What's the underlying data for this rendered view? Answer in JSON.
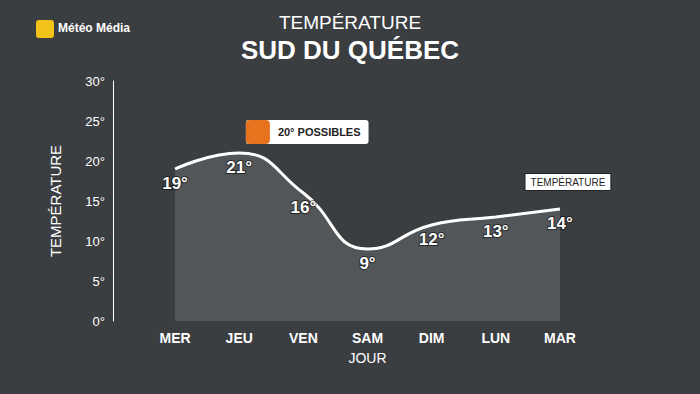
{
  "chart_data": {
    "type": "line",
    "logo": "Météo Média",
    "subtitle": "TEMPÉRATURE",
    "title": "SUD DU QUÉBEC",
    "x_label": "JOUR",
    "y_label": "TEMPÉRATURE",
    "categories": [
      "MER",
      "JEU",
      "VEN",
      "SAM",
      "DIM",
      "LUN",
      "MAR"
    ],
    "series": [
      {
        "name": "TEMPÉRATURE",
        "color": "#ffffff",
        "values": [
          19,
          21,
          16,
          9,
          12,
          13,
          14
        ],
        "value_labels": [
          "19°",
          "21°",
          "16°",
          "9°",
          "12°",
          "13°",
          "14°"
        ]
      }
    ],
    "ylim": [
      0,
      30
    ],
    "yticks": [
      {
        "value": 0,
        "label": "0°"
      },
      {
        "value": 5,
        "label": "5°"
      },
      {
        "value": 10,
        "label": "10°"
      },
      {
        "value": 15,
        "label": "15°"
      },
      {
        "value": 20,
        "label": "20°"
      },
      {
        "value": 25,
        "label": "25°"
      },
      {
        "value": 30,
        "label": "30°"
      }
    ],
    "grid": false,
    "data_labels": true,
    "annotations": [
      {
        "text": "20° POSSIBLES",
        "category": "JEU"
      }
    ]
  }
}
